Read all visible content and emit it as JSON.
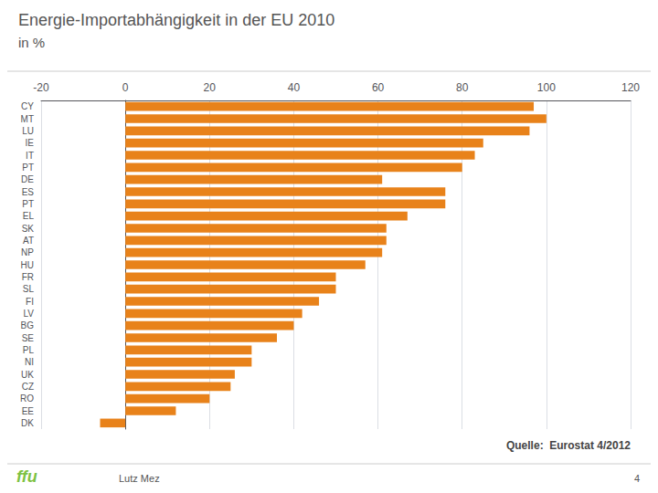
{
  "chart_data": {
    "type": "bar",
    "title": "Energie-Importabhängigkeit in der EU 2010",
    "subtitle": "in %",
    "categories": [
      "CY",
      "MT",
      "LU",
      "IE",
      "IT",
      "PT",
      "DE",
      "ES",
      "PT",
      "EL",
      "SK",
      "AT",
      "NP",
      "HU",
      "FR",
      "SL",
      "FI",
      "LV",
      "BG",
      "SE",
      "PL",
      "NI",
      "UK",
      "CZ",
      "RO",
      "EE",
      "DK"
    ],
    "values": [
      97,
      100,
      96,
      85,
      83,
      80,
      61,
      76,
      76,
      67,
      62,
      62,
      61,
      57,
      50,
      50,
      46,
      42,
      40,
      36,
      30,
      30,
      26,
      25,
      20,
      12,
      -6
    ],
    "color": "#E8821A",
    "orientation": "horizontal",
    "xlim": [
      -20,
      120
    ],
    "xticks": [
      -20,
      0,
      20,
      40,
      60,
      80,
      100,
      120
    ],
    "grid": true,
    "annotations": [
      "Quelle:  Eurostat 4/2012",
      "Lutz Mez",
      "4",
      "ffu"
    ]
  }
}
